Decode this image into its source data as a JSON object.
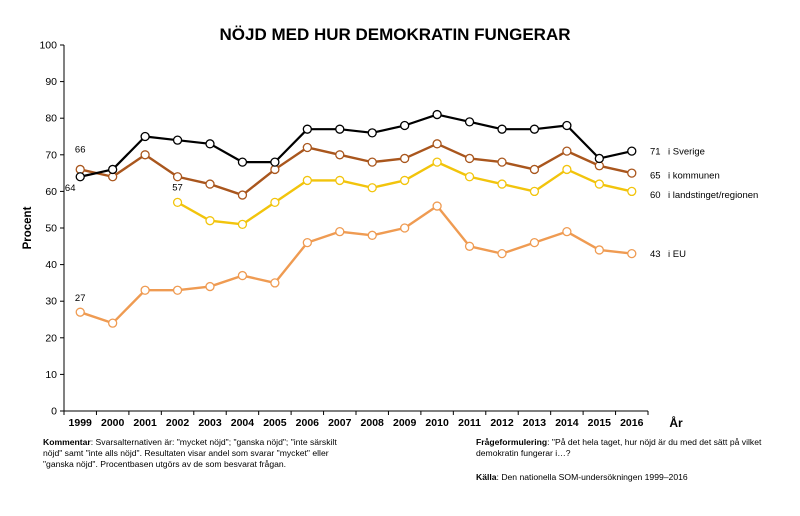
{
  "chart_data": {
    "type": "line",
    "title": "NÖJD MED HUR DEMOKRATIN FUNGERAR",
    "xlabel": "År",
    "ylabel": "Procent",
    "ylim": [
      0,
      100
    ],
    "yticks": [
      "0",
      "10",
      "20",
      "30",
      "40",
      "50",
      "60",
      "70",
      "80",
      "90",
      "100"
    ],
    "x": [
      "1999",
      "2000",
      "2001",
      "2002",
      "2003",
      "2004",
      "2005",
      "2006",
      "2007",
      "2008",
      "2009",
      "2010",
      "2011",
      "2012",
      "2013",
      "2014",
      "2015",
      "2016"
    ],
    "grid": false,
    "series": [
      {
        "name": "i Sverige",
        "color": "#000000",
        "end_label": "71",
        "values": [
          64,
          66,
          75,
          74,
          73,
          68,
          68,
          77,
          77,
          76,
          78,
          81,
          79,
          77,
          77,
          78,
          69,
          71
        ]
      },
      {
        "name": "i kommunen",
        "color": "#a9561d",
        "end_label": "65",
        "values": [
          66,
          64,
          70,
          64,
          62,
          59,
          66,
          72,
          70,
          68,
          69,
          73,
          69,
          68,
          66,
          71,
          67,
          65
        ]
      },
      {
        "name": "i landstinget/regionen",
        "color": "#f2c40c",
        "end_label": "60",
        "values": [
          null,
          null,
          null,
          57,
          52,
          51,
          57,
          63,
          63,
          61,
          63,
          68,
          64,
          62,
          60,
          66,
          62,
          60
        ]
      },
      {
        "name": "i EU",
        "color": "#ef9b52",
        "end_label": "43",
        "values": [
          27,
          24,
          33,
          33,
          34,
          37,
          35,
          46,
          49,
          48,
          50,
          56,
          45,
          43,
          46,
          49,
          44,
          43
        ]
      }
    ],
    "start_labels": [
      {
        "text": "66",
        "series": 1
      },
      {
        "text": "64",
        "series": 0
      },
      {
        "text": "57",
        "series": 2
      },
      {
        "text": "27",
        "series": 3
      }
    ]
  },
  "footer": {
    "comment_label": "Kommentar",
    "comment_text": ": Svarsalternativen är: \"mycket nöjd\"; \"ganska nöjd\"; \"inte särskilt nöjd\" samt \"inte alls nöjd\". Resultaten visar andel som svarar \"mycket\" eller \"ganska nöjd\". Procentbasen utgörs av de som besvarat frågan.",
    "question_label": "Frågeformulering",
    "question_text": ": \"På det hela taget, hur nöjd är du med det sätt på vilket demokratin fungerar i…?",
    "source_label": "Källa",
    "source_text": ": Den nationella SOM-undersökningen 1999–2016"
  }
}
